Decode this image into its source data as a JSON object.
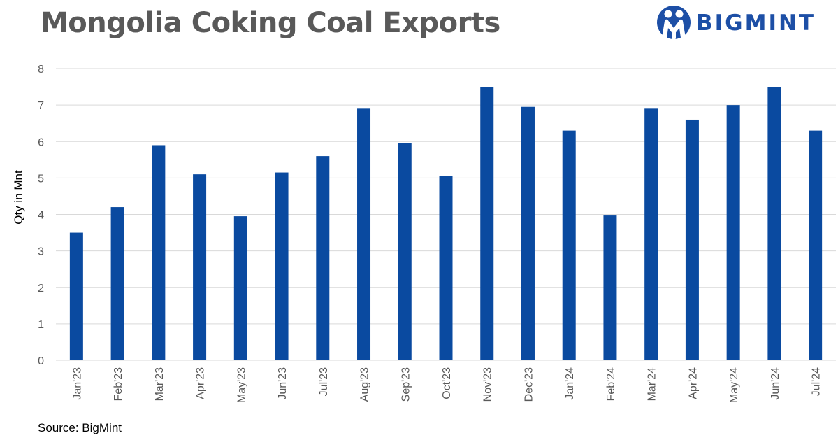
{
  "header": {
    "title": "Mongolia Coking Coal Exports",
    "logo_text": "BIGMINT"
  },
  "footer": {
    "source": "Source: BigMint"
  },
  "colors": {
    "bar": "#0a4aa0",
    "grid": "#d9d9d9",
    "title": "#595959",
    "brand": "#1d4fa6"
  },
  "chart_data": {
    "type": "bar",
    "title": "Mongolia Coking Coal Exports",
    "xlabel": "",
    "ylabel": "Qty in Mnt",
    "ylim": [
      0,
      8
    ],
    "yticks": [
      0,
      1,
      2,
      3,
      4,
      5,
      6,
      7,
      8
    ],
    "grid": true,
    "categories": [
      "Jan'23",
      "Feb'23",
      "Mar'23",
      "Apr'23",
      "May'23",
      "Jun'23",
      "Jul'23",
      "Aug'23",
      "Sep'23",
      "Oct'23",
      "Nov'23",
      "Dec'23",
      "Jan'24",
      "Feb'24",
      "Mar'24",
      "Apr'24",
      "May'24",
      "Jun'24",
      "Jul'24"
    ],
    "values": [
      3.5,
      4.2,
      5.9,
      5.1,
      3.95,
      5.15,
      5.6,
      6.9,
      5.95,
      5.05,
      7.5,
      6.95,
      6.3,
      3.97,
      6.9,
      6.6,
      7.0,
      7.5,
      6.3
    ]
  }
}
